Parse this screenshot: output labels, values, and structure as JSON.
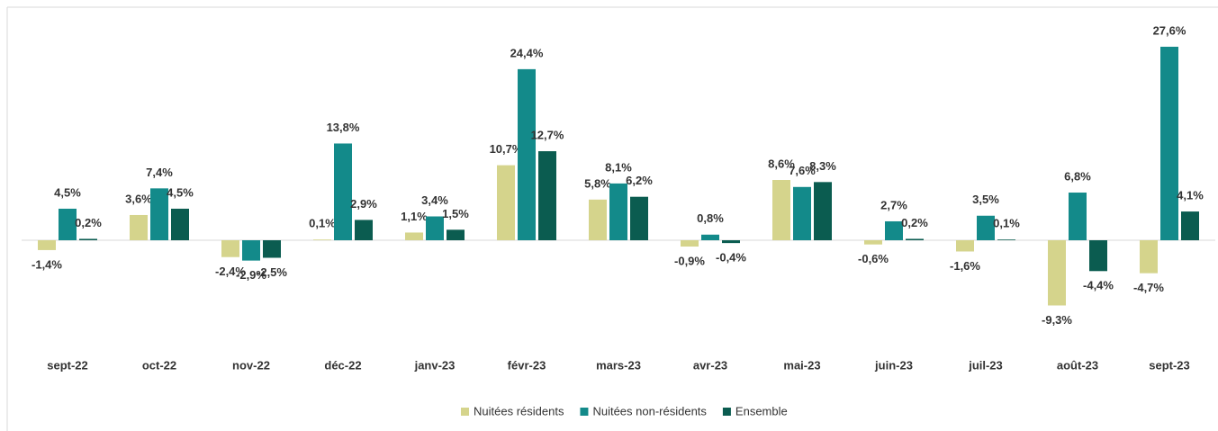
{
  "chart_data": {
    "type": "bar",
    "categories": [
      "sept-22",
      "oct-22",
      "nov-22",
      "déc-22",
      "janv-23",
      "févr-23",
      "mars-23",
      "avr-23",
      "mai-23",
      "juin-23",
      "juil-23",
      "août-23",
      "sept-23"
    ],
    "series": [
      {
        "name": "Nuitées résidents",
        "color": "#d5d48c",
        "values": [
          -1.4,
          3.6,
          -2.4,
          0.1,
          1.1,
          10.7,
          5.8,
          -0.9,
          8.6,
          -0.6,
          -1.6,
          -9.3,
          -4.7
        ],
        "value_labels": [
          "-1,4%",
          "3,6%",
          "-2,4%",
          "0,1%",
          "1,1%",
          "10,7%",
          "5,8%",
          "-0,9%",
          "8,6%",
          "-0,6%",
          "-1,6%",
          "-9,3%",
          "-4,7%"
        ]
      },
      {
        "name": "Nuitées non-résidents",
        "color": "#138a8a",
        "values": [
          4.5,
          7.4,
          -2.9,
          13.8,
          3.4,
          24.4,
          8.1,
          0.8,
          7.6,
          2.7,
          3.5,
          6.8,
          27.6
        ],
        "value_labels": [
          "4,5%",
          "7,4%",
          "-2,9%",
          "13,8%",
          "3,4%",
          "24,4%",
          "8,1%",
          "0,8%",
          "7,6%",
          "2,7%",
          "3,5%",
          "6,8%",
          "27,6%"
        ]
      },
      {
        "name": "Ensemble",
        "color": "#0b5c50",
        "values": [
          0.2,
          4.5,
          -2.5,
          2.9,
          1.5,
          12.7,
          6.2,
          -0.4,
          8.3,
          0.2,
          0.1,
          -4.4,
          4.1
        ],
        "value_labels": [
          "0,2%",
          "4,5%",
          "-2,5%",
          "2,9%",
          "1,5%",
          "12,7%",
          "6,2%",
          "-0,4%",
          "8,3%",
          "0,2%",
          "0,1%",
          "-4,4%",
          "4,1%"
        ]
      }
    ],
    "ylim": [
      -14.5,
      31.7
    ],
    "legend": "bottom"
  }
}
